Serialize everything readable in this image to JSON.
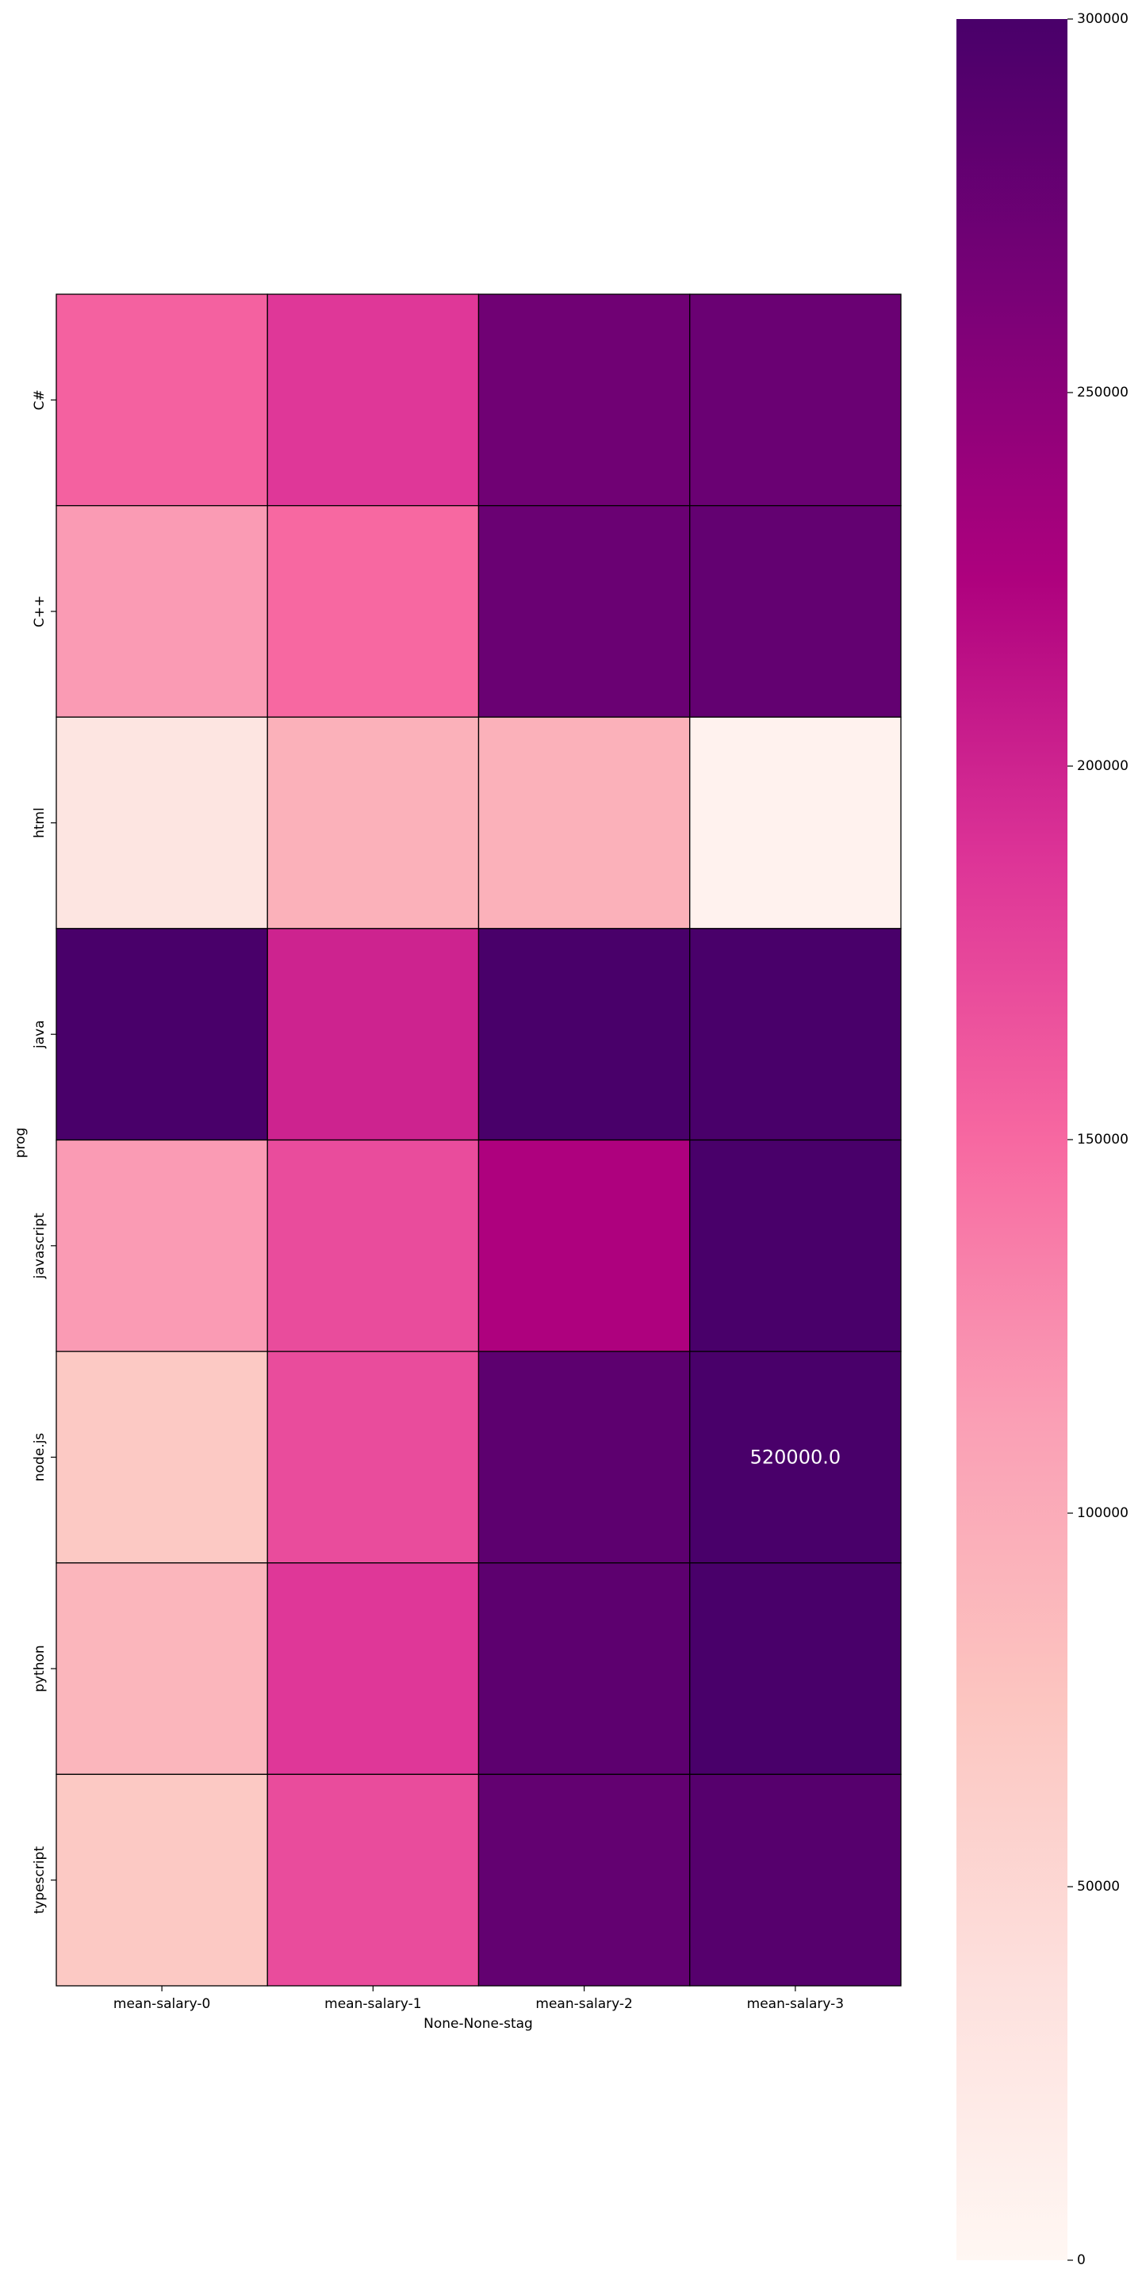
{
  "chart_data": {
    "type": "heatmap",
    "title": "",
    "xlabel": "None-None-stag",
    "ylabel": "prog",
    "x_categories": [
      "mean-salary-0",
      "mean-salary-1",
      "mean-salary-2",
      "mean-salary-3"
    ],
    "y_categories": [
      "C#",
      "C++",
      "html",
      "java",
      "javascript",
      "node.js",
      "python",
      "typescript"
    ],
    "values": [
      [
        155000,
        185000,
        270000,
        275000
      ],
      [
        115000,
        150000,
        275000,
        280000
      ],
      [
        30000,
        95000,
        95000,
        8000
      ],
      [
        300000,
        200000,
        300000,
        300000
      ],
      [
        115000,
        170000,
        225000,
        300000
      ],
      [
        70000,
        170000,
        285000,
        520000
      ],
      [
        90000,
        185000,
        285000,
        300000
      ],
      [
        70000,
        170000,
        280000,
        290000
      ]
    ],
    "annotations": [
      {
        "row": 5,
        "col": 3,
        "text": "520000.0"
      }
    ],
    "colorbar": {
      "min": 0,
      "max": 300000,
      "ticks": [
        "0",
        "50000",
        "100000",
        "150000",
        "200000",
        "250000",
        "300000"
      ],
      "colormap": "RdPu"
    },
    "grid": true,
    "legend": "colorbar-right"
  }
}
